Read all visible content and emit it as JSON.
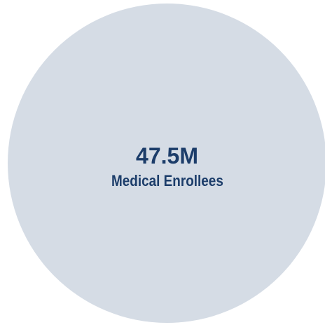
{
  "stat": {
    "value": "47.5M",
    "label": "Medical Enrollees"
  },
  "colors": {
    "circle_fill": "#d5dce5",
    "text": "#1c3d6a"
  }
}
